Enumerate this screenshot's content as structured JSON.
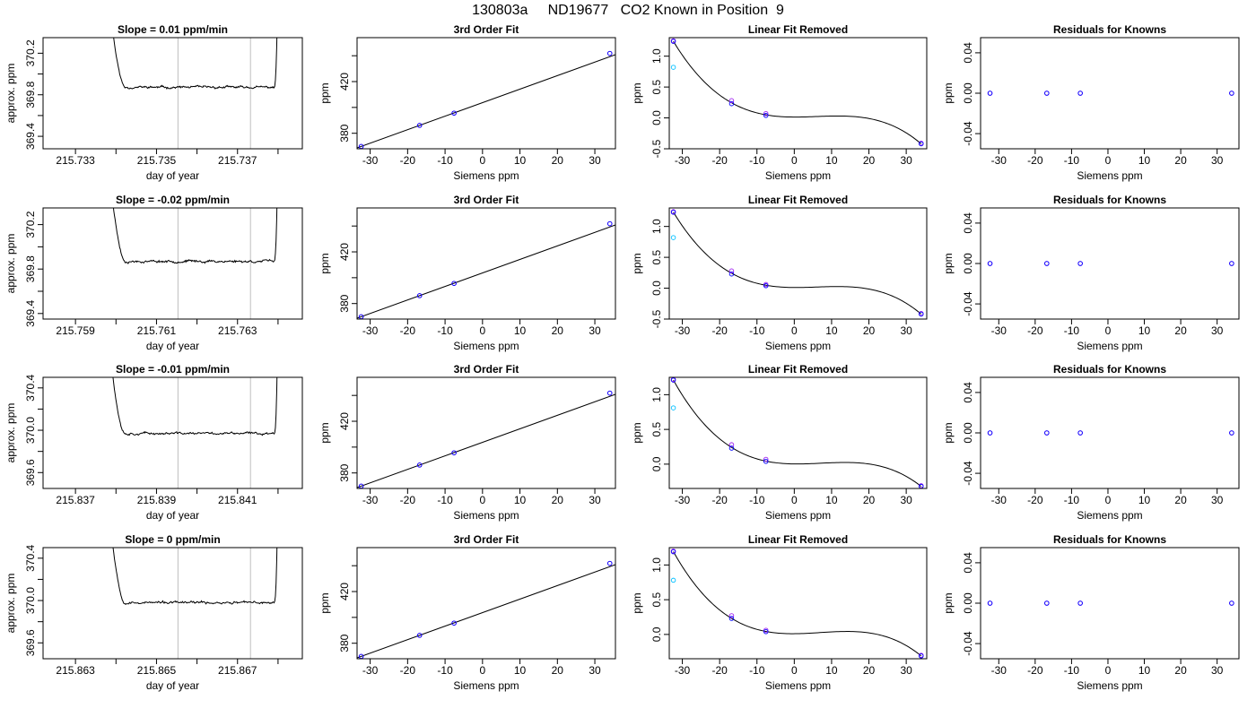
{
  "title": "130803a     ND19677   CO2 Known in Position  9",
  "colors": {
    "trace": "#000000",
    "fit": "#000000",
    "known": "#0000ff",
    "residual": "#a020f0",
    "extra": "#00bfff",
    "window": "#bebebe",
    "frame": "#000000"
  },
  "rows": [
    {
      "timeseries": {
        "title": "Slope =  0.01  ppm/min",
        "xlabel": "day of year",
        "ylabel": "approx. ppm",
        "xlim": [
          215.7322,
          215.7386
        ],
        "ylim": [
          369.28,
          370.35
        ],
        "xticks": [
          215.733,
          215.734,
          215.735,
          215.736,
          215.737,
          215.738
        ],
        "xticklabels": [
          "215.733",
          "",
          "215.735",
          "",
          "215.737",
          ""
        ],
        "yticks": [
          369.4,
          369.6,
          369.8,
          370.0,
          370.2
        ],
        "yticklabels": [
          "369.4",
          "",
          "369.8",
          "",
          "370.2"
        ],
        "window": [
          215.73553,
          215.73732
        ],
        "baseline": 369.872,
        "spike_start": 215.7338,
        "spike_end": 215.738,
        "seed": 11
      },
      "fit": {
        "title": "3rd Order Fit",
        "xlabel": "Siemens ppm",
        "ylabel": "ppm",
        "xlim": [
          -33.5,
          35.5
        ],
        "ylim": [
          368,
          454
        ],
        "xticks": [
          -30,
          -20,
          -10,
          0,
          10,
          20,
          30
        ],
        "yticks": [
          380,
          400,
          420,
          440
        ],
        "yticklabels": [
          "380",
          "",
          "420",
          ""
        ],
        "points": [
          [
            -32.4,
            369.8
          ],
          [
            -16.8,
            386.1
          ],
          [
            -7.6,
            395.6
          ],
          [
            34.0,
            441.8
          ]
        ],
        "line_a": 403.7,
        "line_b": 1.0462
      },
      "linear_removed": {
        "title": "Linear Fit Removed",
        "xlabel": "Siemens ppm",
        "ylabel": "ppm",
        "xlim": [
          -33.5,
          35.5
        ],
        "ylim": [
          -0.5,
          1.3
        ],
        "xticks": [
          -30,
          -20,
          -10,
          0,
          10,
          20,
          30
        ],
        "yticks": [
          -0.5,
          0.0,
          0.5,
          1.0
        ],
        "yticklabels": [
          "-0.5",
          "0.0",
          "0.5",
          "1.0"
        ],
        "curve_points": [
          [
            -32.4,
            1.24
          ],
          [
            -16.8,
            0.25
          ],
          [
            -7.6,
            0.04
          ],
          [
            0,
            0.02
          ],
          [
            12,
            0.03
          ],
          [
            34.0,
            -0.42
          ]
        ],
        "known_points": [
          [
            -32.4,
            1.24
          ],
          [
            -16.8,
            0.23
          ],
          [
            -7.6,
            0.04
          ],
          [
            34.0,
            -0.42
          ]
        ],
        "residual_points": [
          [
            -32.4,
            1.25
          ],
          [
            -16.8,
            0.28
          ],
          [
            -7.6,
            0.07
          ],
          [
            34.0,
            -0.41
          ]
        ],
        "extra_points": [
          [
            -32.4,
            0.82
          ]
        ]
      },
      "residuals": {
        "title": "Residuals for Knowns",
        "xlabel": "Siemens ppm",
        "ylabel": "ppm",
        "xlim": [
          -35,
          36
        ],
        "ylim": [
          -0.055,
          0.055
        ],
        "xticks": [
          -30,
          -20,
          -10,
          0,
          10,
          20,
          30
        ],
        "yticks": [
          -0.04,
          0.0,
          0.04
        ],
        "yticklabels": [
          "-0.04",
          "0.00",
          "0.04"
        ],
        "points": [
          [
            -32.4,
            0.0
          ],
          [
            -16.8,
            0.0
          ],
          [
            -7.6,
            0.0
          ],
          [
            34.0,
            0.0
          ]
        ]
      }
    },
    {
      "timeseries": {
        "title": "Slope =  -0.02  ppm/min",
        "xlabel": "day of year",
        "ylabel": "approx. ppm",
        "xlim": [
          215.7582,
          215.7646
        ],
        "ylim": [
          369.35,
          370.35
        ],
        "xticks": [
          215.759,
          215.76,
          215.761,
          215.762,
          215.763,
          215.764
        ],
        "xticklabels": [
          "215.759",
          "",
          "215.761",
          "",
          "215.763",
          ""
        ],
        "yticks": [
          369.4,
          369.6,
          369.8,
          370.0,
          370.2
        ],
        "yticklabels": [
          "369.4",
          "",
          "369.8",
          "",
          "370.2"
        ],
        "window": [
          215.76153,
          215.76332
        ],
        "baseline": 369.87,
        "spike_start": 215.7598,
        "spike_end": 215.764,
        "seed": 23
      },
      "fit": {
        "title": "3rd Order Fit",
        "xlabel": "Siemens ppm",
        "ylabel": "ppm",
        "xlim": [
          -33.5,
          35.5
        ],
        "ylim": [
          368,
          454
        ],
        "xticks": [
          -30,
          -20,
          -10,
          0,
          10,
          20,
          30
        ],
        "yticks": [
          380,
          400,
          420,
          440
        ],
        "yticklabels": [
          "380",
          "",
          "420",
          ""
        ],
        "points": [
          [
            -32.4,
            369.8
          ],
          [
            -16.8,
            386.1
          ],
          [
            -7.6,
            395.6
          ],
          [
            34.0,
            441.8
          ]
        ],
        "line_a": 403.7,
        "line_b": 1.0462
      },
      "linear_removed": {
        "title": "Linear Fit Removed",
        "xlabel": "Siemens ppm",
        "ylabel": "ppm",
        "xlim": [
          -33.5,
          35.5
        ],
        "ylim": [
          -0.5,
          1.3
        ],
        "xticks": [
          -30,
          -20,
          -10,
          0,
          10,
          20,
          30
        ],
        "yticks": [
          -0.5,
          0.0,
          0.5,
          1.0
        ],
        "yticklabels": [
          "-0.5",
          "0.0",
          "0.5",
          "1.0"
        ],
        "curve_points": [
          [
            -32.4,
            1.23
          ],
          [
            -16.8,
            0.25
          ],
          [
            -7.6,
            0.04
          ],
          [
            0,
            0.01
          ],
          [
            12,
            0.03
          ],
          [
            34.0,
            -0.42
          ]
        ],
        "known_points": [
          [
            -32.4,
            1.23
          ],
          [
            -16.8,
            0.23
          ],
          [
            -7.6,
            0.04
          ],
          [
            34.0,
            -0.42
          ]
        ],
        "residual_points": [
          [
            -32.4,
            1.24
          ],
          [
            -16.8,
            0.28
          ],
          [
            -7.6,
            0.06
          ],
          [
            34.0,
            -0.41
          ]
        ],
        "extra_points": [
          [
            -32.4,
            0.82
          ]
        ]
      },
      "residuals": {
        "title": "Residuals for Knowns",
        "xlabel": "Siemens ppm",
        "ylabel": "ppm",
        "xlim": [
          -35,
          36
        ],
        "ylim": [
          -0.055,
          0.055
        ],
        "xticks": [
          -30,
          -20,
          -10,
          0,
          10,
          20,
          30
        ],
        "yticks": [
          -0.04,
          0.0,
          0.04
        ],
        "yticklabels": [
          "-0.04",
          "0.00",
          "0.04"
        ],
        "points": [
          [
            -32.4,
            0.0
          ],
          [
            -16.8,
            0.0
          ],
          [
            -7.6,
            0.0
          ],
          [
            34.0,
            0.0
          ]
        ]
      }
    },
    {
      "timeseries": {
        "title": "Slope =  -0.01  ppm/min",
        "xlabel": "day of year",
        "ylabel": "approx. ppm",
        "xlim": [
          215.8362,
          215.8426
        ],
        "ylim": [
          369.45,
          370.5
        ],
        "xticks": [
          215.837,
          215.838,
          215.839,
          215.84,
          215.841,
          215.842
        ],
        "xticklabels": [
          "215.837",
          "",
          "215.839",
          "",
          "215.841",
          ""
        ],
        "yticks": [
          369.6,
          369.8,
          370.0,
          370.2,
          370.4
        ],
        "yticklabels": [
          "369.6",
          "",
          "370.0",
          "",
          "370.4"
        ],
        "window": [
          215.83953,
          215.84132
        ],
        "baseline": 369.97,
        "spike_start": 215.8378,
        "spike_end": 215.842,
        "seed": 37
      },
      "fit": {
        "title": "3rd Order Fit",
        "xlabel": "Siemens ppm",
        "ylabel": "ppm",
        "xlim": [
          -33.5,
          35.5
        ],
        "ylim": [
          368,
          454
        ],
        "xticks": [
          -30,
          -20,
          -10,
          0,
          10,
          20,
          30
        ],
        "yticks": [
          380,
          400,
          420,
          440
        ],
        "yticklabels": [
          "380",
          "",
          "420",
          ""
        ],
        "points": [
          [
            -32.4,
            369.8
          ],
          [
            -16.8,
            386.1
          ],
          [
            -7.6,
            395.6
          ],
          [
            34.0,
            441.8
          ]
        ],
        "line_a": 403.7,
        "line_b": 1.0462
      },
      "linear_removed": {
        "title": "Linear Fit Removed",
        "xlabel": "Siemens ppm",
        "ylabel": "ppm",
        "xlim": [
          -33.5,
          35.5
        ],
        "ylim": [
          -0.35,
          1.25
        ],
        "xticks": [
          -30,
          -20,
          -10,
          0,
          10,
          20,
          30
        ],
        "yticks": [
          0.0,
          0.5,
          1.0
        ],
        "yticklabels": [
          "0.0",
          "0.5",
          "1.0"
        ],
        "curve_points": [
          [
            -32.4,
            1.21
          ],
          [
            -16.8,
            0.24
          ],
          [
            -7.6,
            0.04
          ],
          [
            0,
            0.01
          ],
          [
            12,
            0.02
          ],
          [
            34.0,
            -0.32
          ]
        ],
        "known_points": [
          [
            -32.4,
            1.21
          ],
          [
            -16.8,
            0.23
          ],
          [
            -7.6,
            0.04
          ],
          [
            34.0,
            -0.32
          ]
        ],
        "residual_points": [
          [
            -32.4,
            1.22
          ],
          [
            -16.8,
            0.28
          ],
          [
            -7.6,
            0.07
          ],
          [
            34.0,
            -0.31
          ]
        ],
        "extra_points": [
          [
            -32.4,
            0.81
          ]
        ]
      },
      "residuals": {
        "title": "Residuals for Knowns",
        "xlabel": "Siemens ppm",
        "ylabel": "ppm",
        "xlim": [
          -35,
          36
        ],
        "ylim": [
          -0.055,
          0.055
        ],
        "xticks": [
          -30,
          -20,
          -10,
          0,
          10,
          20,
          30
        ],
        "yticks": [
          -0.04,
          0.0,
          0.04
        ],
        "yticklabels": [
          "-0.04",
          "0.00",
          "0.04"
        ],
        "points": [
          [
            -32.4,
            0.0
          ],
          [
            -16.8,
            0.0
          ],
          [
            -7.6,
            0.0
          ],
          [
            34.0,
            0.0
          ]
        ]
      }
    },
    {
      "timeseries": {
        "title": "Slope =  0  ppm/min",
        "xlabel": "day of year",
        "ylabel": "approx. ppm",
        "xlim": [
          215.8622,
          215.8686
        ],
        "ylim": [
          369.45,
          370.5
        ],
        "xticks": [
          215.863,
          215.864,
          215.865,
          215.866,
          215.867,
          215.868
        ],
        "xticklabels": [
          "215.863",
          "",
          "215.865",
          "",
          "215.867",
          ""
        ],
        "yticks": [
          369.6,
          369.8,
          370.0,
          370.2,
          370.4
        ],
        "yticklabels": [
          "369.6",
          "",
          "370.0",
          "",
          "370.4"
        ],
        "window": [
          215.86553,
          215.86732
        ],
        "baseline": 369.98,
        "spike_start": 215.8638,
        "spike_end": 215.868,
        "seed": 53
      },
      "fit": {
        "title": "3rd Order Fit",
        "xlabel": "Siemens ppm",
        "ylabel": "ppm",
        "xlim": [
          -33.5,
          35.5
        ],
        "ylim": [
          368,
          454
        ],
        "xticks": [
          -30,
          -20,
          -10,
          0,
          10,
          20,
          30
        ],
        "yticks": [
          380,
          400,
          420,
          440
        ],
        "yticklabels": [
          "380",
          "",
          "420",
          ""
        ],
        "points": [
          [
            -32.4,
            369.8
          ],
          [
            -16.8,
            386.1
          ],
          [
            -7.6,
            395.6
          ],
          [
            34.0,
            441.8
          ]
        ],
        "line_a": 403.7,
        "line_b": 1.0462
      },
      "linear_removed": {
        "title": "Linear Fit Removed",
        "xlabel": "Siemens ppm",
        "ylabel": "ppm",
        "xlim": [
          -33.5,
          35.5
        ],
        "ylim": [
          -0.35,
          1.25
        ],
        "xticks": [
          -30,
          -20,
          -10,
          0,
          10,
          20,
          30
        ],
        "yticks": [
          0.0,
          0.5,
          1.0
        ],
        "yticklabels": [
          "0.0",
          "0.5",
          "1.0"
        ],
        "curve_points": [
          [
            -32.4,
            1.19
          ],
          [
            -16.8,
            0.24
          ],
          [
            -7.6,
            0.04
          ],
          [
            0,
            0.0
          ],
          [
            13,
            0.05
          ],
          [
            34.0,
            -0.31
          ]
        ],
        "known_points": [
          [
            -32.4,
            1.19
          ],
          [
            -16.8,
            0.23
          ],
          [
            -7.6,
            0.04
          ],
          [
            34.0,
            -0.31
          ]
        ],
        "residual_points": [
          [
            -32.4,
            1.2
          ],
          [
            -16.8,
            0.27
          ],
          [
            -7.6,
            0.06
          ],
          [
            34.0,
            -0.3
          ]
        ],
        "extra_points": [
          [
            -32.4,
            0.78
          ]
        ]
      },
      "residuals": {
        "title": "Residuals for Knowns",
        "xlabel": "Siemens ppm",
        "ylabel": "ppm",
        "xlim": [
          -35,
          36
        ],
        "ylim": [
          -0.055,
          0.055
        ],
        "xticks": [
          -30,
          -20,
          -10,
          0,
          10,
          20,
          30
        ],
        "yticks": [
          -0.04,
          0.0,
          0.04
        ],
        "yticklabels": [
          "-0.04",
          "0.00",
          "0.04"
        ],
        "points": [
          [
            -32.4,
            0.0
          ],
          [
            -16.8,
            0.0
          ],
          [
            -7.6,
            0.0
          ],
          [
            34.0,
            0.0
          ]
        ]
      }
    }
  ],
  "chart_data": [
    {
      "type": "line",
      "title": "Slope =  0.01  ppm/min",
      "xlabel": "day of year",
      "ylabel": "approx. ppm",
      "xlim": [
        215.7322,
        215.7386
      ],
      "ylim": [
        369.28,
        370.35
      ],
      "baseline_ppm": 369.872
    },
    {
      "type": "scatter",
      "title": "3rd Order Fit",
      "xlabel": "Siemens ppm",
      "ylabel": "ppm",
      "x": [
        -32.4,
        -16.8,
        -7.6,
        34.0
      ],
      "y": [
        369.8,
        386.1,
        395.6,
        441.8
      ]
    },
    {
      "type": "scatter",
      "title": "Linear Fit Removed",
      "xlabel": "Siemens ppm",
      "ylabel": "ppm",
      "x": [
        -32.4,
        -16.8,
        -7.6,
        34.0
      ],
      "y": [
        1.24,
        0.23,
        0.04,
        -0.42
      ]
    },
    {
      "type": "scatter",
      "title": "Residuals for Knowns",
      "xlabel": "Siemens ppm",
      "ylabel": "ppm",
      "x": [
        -32.4,
        -16.8,
        -7.6,
        34.0
      ],
      "y": [
        0.0,
        0.0,
        0.0,
        0.0
      ]
    }
  ]
}
